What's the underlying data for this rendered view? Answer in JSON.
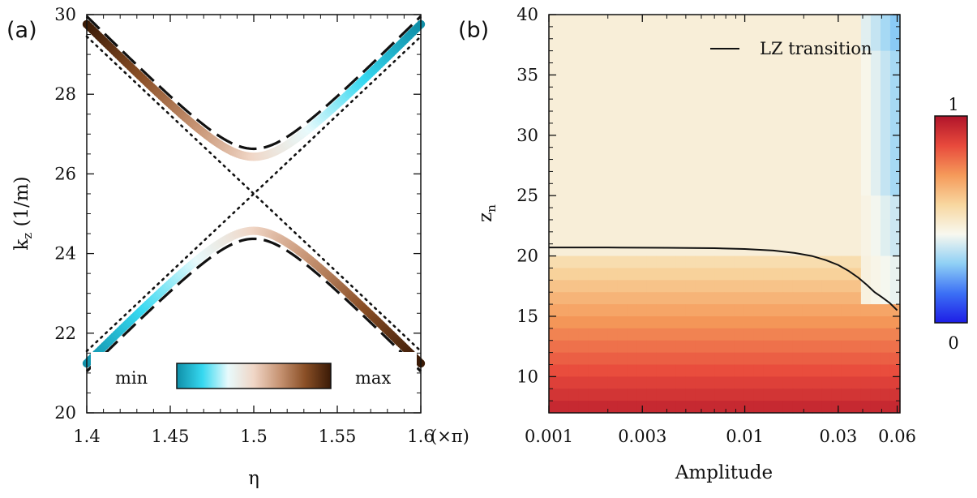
{
  "chart_data": [
    {
      "panel": "(a)",
      "type": "line",
      "xlabel": "η",
      "ylabel_main": "k",
      "ylabel_sub": "z",
      "ylabel_unit": " (1/m)",
      "xlim": [
        1.4,
        1.6
      ],
      "ylim": [
        20,
        30
      ],
      "x_ticks": [
        1.4,
        1.45,
        1.5,
        1.55,
        1.6
      ],
      "x_tick_labels": [
        "1.4",
        "1.45",
        "1.5",
        "1.55",
        "1.6"
      ],
      "x_unit_label": "(×π)",
      "y_ticks": [
        20,
        22,
        24,
        26,
        28,
        30
      ],
      "y_tick_labels": [
        "20",
        "22",
        "24",
        "26",
        "28",
        "30"
      ],
      "center": [
        1.5,
        25.5
      ],
      "slope": 42.5,
      "half_gap": 1.05,
      "series": [
        {
          "role": "upper-band-exact",
          "style": "colored-dots",
          "x_range": [
            1.4,
            1.6
          ]
        },
        {
          "role": "lower-band-exact",
          "style": "colored-dots",
          "x_range": [
            1.4,
            1.6
          ]
        },
        {
          "role": "upper-band-approx",
          "style": "dashed"
        },
        {
          "role": "lower-band-approx",
          "style": "dashed"
        },
        {
          "role": "uncoupled-1",
          "style": "dotted"
        },
        {
          "role": "uncoupled-2",
          "style": "dotted"
        }
      ],
      "colorbar": {
        "orientation": "horizontal",
        "min_label": "min",
        "max_label": "max",
        "colors": [
          "#0f8fa8",
          "#36d8f0",
          "#e8fafc",
          "#f0d6c6",
          "#c79474",
          "#8a4f26",
          "#3a1a06"
        ]
      }
    },
    {
      "panel": "(b)",
      "type": "heatmap",
      "xlabel": "Amplitude",
      "ylabel_main": "z",
      "ylabel_sub": "n",
      "xscale": "log",
      "xlim": [
        0.001,
        0.062
      ],
      "ylim": [
        7,
        40
      ],
      "x_ticks": [
        0.001,
        0.003,
        0.01,
        0.03,
        0.06
      ],
      "x_tick_labels": [
        "0.001",
        "0.003",
        "0.01",
        "0.03",
        "0.06"
      ],
      "y_ticks": [
        10,
        15,
        20,
        25,
        30,
        35,
        40
      ],
      "y_tick_labels": [
        "10",
        "15",
        "20",
        "25",
        "30",
        "35",
        "40"
      ],
      "legend": {
        "label": "LZ transition",
        "position": "top-right"
      },
      "lz_transition": {
        "amplitude": [
          0.001,
          0.002,
          0.004,
          0.007,
          0.01,
          0.014,
          0.018,
          0.022,
          0.026,
          0.03,
          0.034,
          0.038,
          0.042,
          0.046,
          0.05,
          0.055,
          0.06
        ],
        "zn": [
          20.7,
          20.7,
          20.68,
          20.64,
          20.58,
          20.45,
          20.25,
          20.0,
          19.65,
          19.25,
          18.75,
          18.2,
          17.6,
          17.0,
          16.6,
          16.1,
          15.5
        ]
      },
      "colorbar": {
        "orientation": "vertical",
        "min": 0,
        "max": 1,
        "min_label": "0",
        "max_label": "1",
        "colors": [
          "#1d1de6",
          "#3c70f5",
          "#8fd0f5",
          "#f8f8ef",
          "#f8d7a0",
          "#f59a5a",
          "#e84a3c",
          "#b0142a"
        ]
      }
    }
  ]
}
